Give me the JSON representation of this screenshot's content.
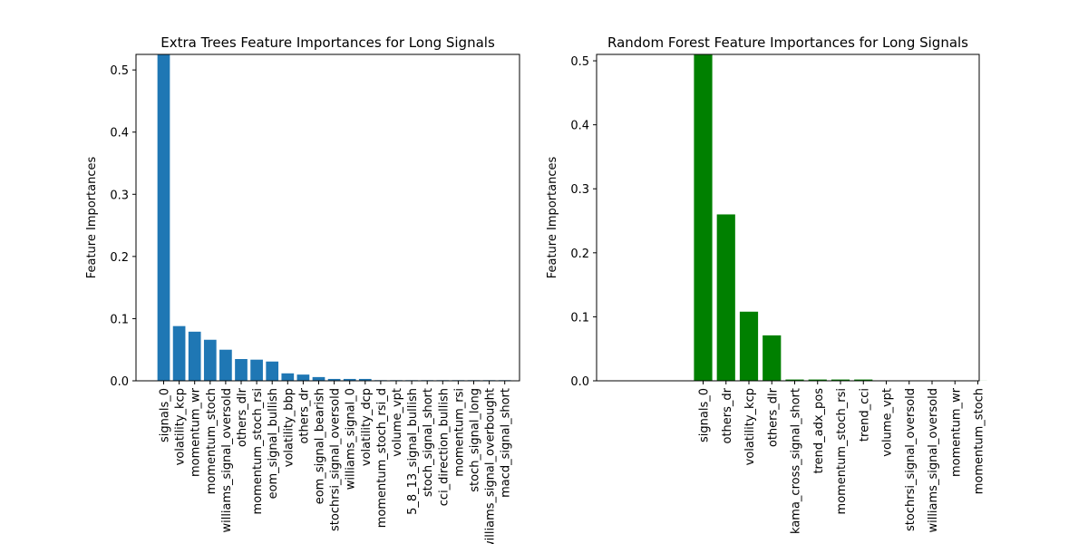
{
  "chart_data": [
    {
      "type": "bar",
      "title": "Extra Trees Feature Importances for Long Signals",
      "y_label": "Feature Importances",
      "categories": [
        "signals_0",
        "volatility_kcp",
        "momentum_wr",
        "momentum_stoch",
        "williams_signal_oversold",
        "others_dlr",
        "momentum_stoch_rsi",
        "eom_signal_bullish",
        "volatility_bbp",
        "others_dr",
        "eom_signal_bearish",
        "stochrsi_signal_oversold",
        "williams_signal_0",
        "volatility_dcp",
        "momentum_stoch_rsi_d",
        "volume_vpt",
        "5_8_13_signal_bullish",
        "stoch_signal_short",
        "cci_direction_bullish",
        "momentum_rsi",
        "stoch_signal_long",
        "williams_signal_overbought",
        "macd_signal_short"
      ],
      "values": [
        0.525,
        0.088,
        0.079,
        0.066,
        0.05,
        0.035,
        0.034,
        0.031,
        0.012,
        0.01,
        0.006,
        0.003,
        0.003,
        0.003,
        0.001,
        0.001,
        0.001,
        0.001,
        0.001,
        0.001,
        0.001,
        0.001,
        0.001
      ],
      "color": "#1f77b4",
      "ylim": [
        0,
        0.525
      ],
      "yticks": [
        {
          "value": 0,
          "label": "0.0"
        },
        0.1,
        0.2,
        0.3,
        0.4,
        0.5
      ]
    },
    {
      "type": "bar",
      "title": "Random Forest Feature Importances for Long Signals",
      "y_label": "Feature Importances",
      "categories": [
        "signals_0",
        "others_dr",
        "volatility_kcp",
        "others_dlr",
        "kama_cross_signal_short",
        "trend_adx_pos",
        "momentum_stoch_rsi",
        "trend_cci",
        "volume_vpt",
        "stochrsi_signal_oversold",
        "williams_signal_oversold",
        "momentum_wr",
        "momentum_stoch"
      ],
      "values": [
        0.51,
        0.26,
        0.108,
        0.071,
        0.002,
        0.002,
        0.002,
        0.002,
        0.0005,
        0.0003,
        0.0003,
        0.0002,
        0.0001
      ],
      "color": "#008000",
      "ylim": [
        0,
        0.51
      ],
      "yticks": [
        {
          "value": 0,
          "label": "0.0"
        },
        0.1,
        0.2,
        0.3,
        0.4,
        0.5
      ]
    }
  ]
}
